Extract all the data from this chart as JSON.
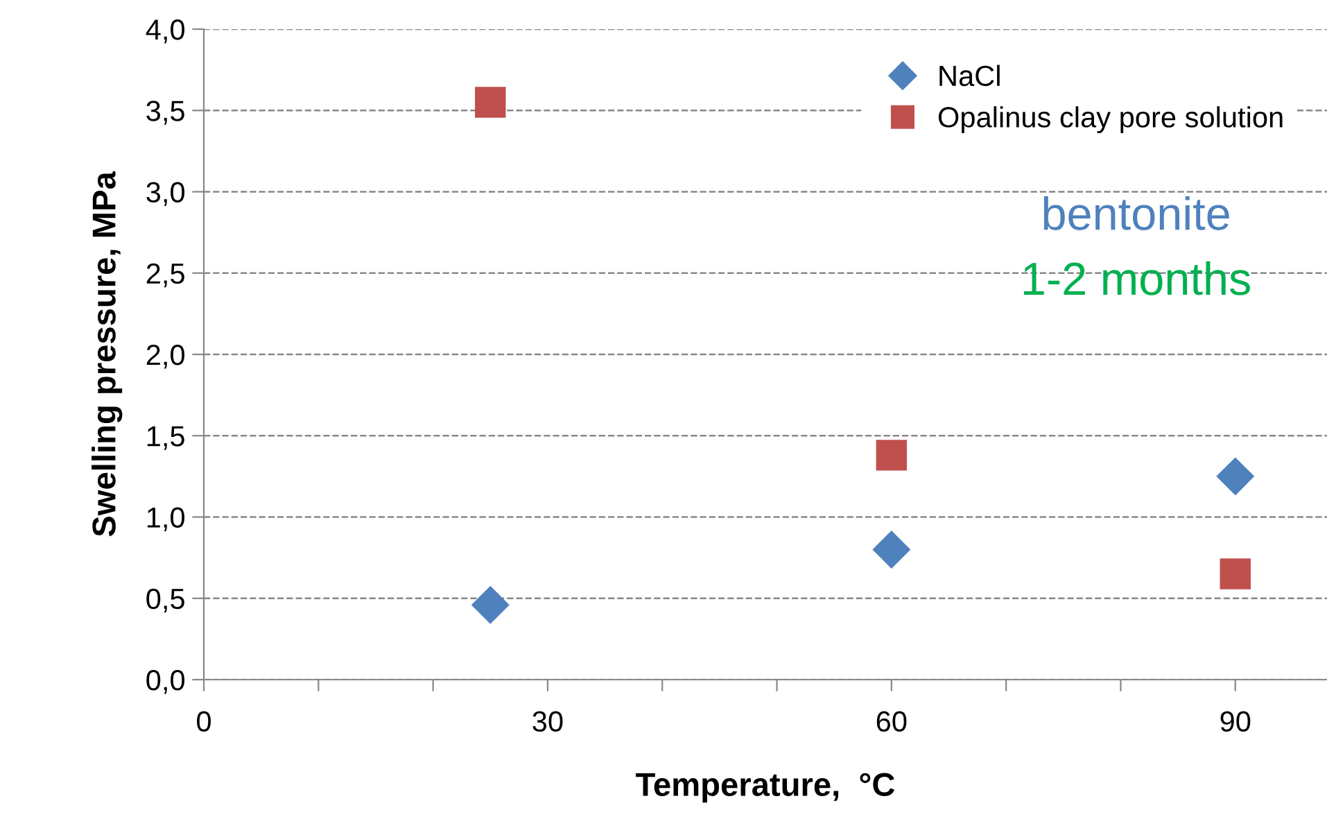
{
  "chart_data": {
    "type": "scatter",
    "xlabel": "Temperature,  °C",
    "ylabel": "Swelling pressure, MPa",
    "annotations": [
      "bentonite",
      "1-2 months"
    ],
    "series": [
      {
        "name": "NaCl",
        "color": "#4f81bd",
        "marker": "diamond",
        "x": [
          25,
          60,
          90
        ],
        "values": [
          0.46,
          0.8,
          1.25
        ]
      },
      {
        "name": "Opalinus clay pore solution",
        "color": "#c0504d",
        "marker": "square",
        "x": [
          25,
          60,
          90
        ],
        "values": [
          3.55,
          1.38,
          0.65
        ]
      }
    ],
    "xlim": [
      0,
      98
    ],
    "xticks": [
      0,
      {
        "value": 10,
        "label": null
      },
      {
        "value": 20,
        "label": null
      },
      30,
      {
        "value": 40,
        "label": null
      },
      {
        "value": 50,
        "label": null
      },
      60,
      {
        "value": 70,
        "label": null
      },
      {
        "value": 80,
        "label": null
      },
      90
    ],
    "ylim": [
      0,
      4
    ],
    "yticks": [
      {
        "value": 0,
        "label": "0,0"
      },
      {
        "value": 0.5,
        "label": "0,5"
      },
      {
        "value": 1,
        "label": "1,0"
      },
      {
        "value": 1.5,
        "label": "1,5"
      },
      {
        "value": 2,
        "label": "2,0"
      },
      {
        "value": 2.5,
        "label": "2,5"
      },
      {
        "value": 3,
        "label": "3,0"
      },
      {
        "value": 3.5,
        "label": "3,5"
      },
      {
        "value": 4,
        "label": "4,0"
      }
    ],
    "grid": "y",
    "legend": "top right"
  }
}
